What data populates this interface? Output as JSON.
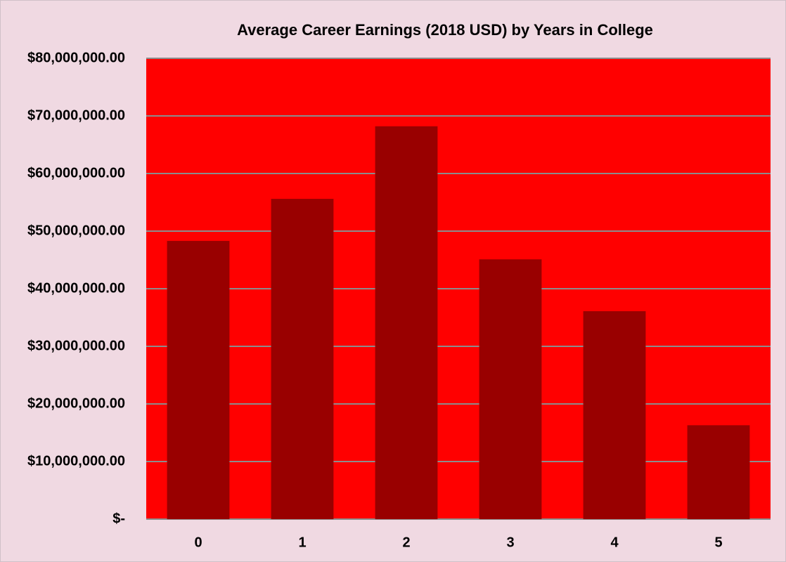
{
  "chart_data": {
    "type": "bar",
    "title": "Average Career Earnings (2018 USD) by Years in College",
    "categories": [
      "0",
      "1",
      "2",
      "3",
      "4",
      "5"
    ],
    "values": [
      48300000,
      55600000,
      68200000,
      45100000,
      36100000,
      16300000
    ],
    "color": "#990000",
    "plot_background": "#ff0000",
    "ylim": [
      0,
      80000000
    ],
    "yticks": [
      {
        "value": 0,
        "label": "$-"
      },
      {
        "value": 10000000,
        "label": "$10,000,000.00"
      },
      {
        "value": 20000000,
        "label": "$20,000,000.00"
      },
      {
        "value": 30000000,
        "label": "$30,000,000.00"
      },
      {
        "value": 40000000,
        "label": "$40,000,000.00"
      },
      {
        "value": 50000000,
        "label": "$50,000,000.00"
      },
      {
        "value": 60000000,
        "label": "$60,000,000.00"
      },
      {
        "value": 70000000,
        "label": "$70,000,000.00"
      },
      {
        "value": 80000000,
        "label": "$80,000,000.00"
      }
    ],
    "grid": true
  }
}
